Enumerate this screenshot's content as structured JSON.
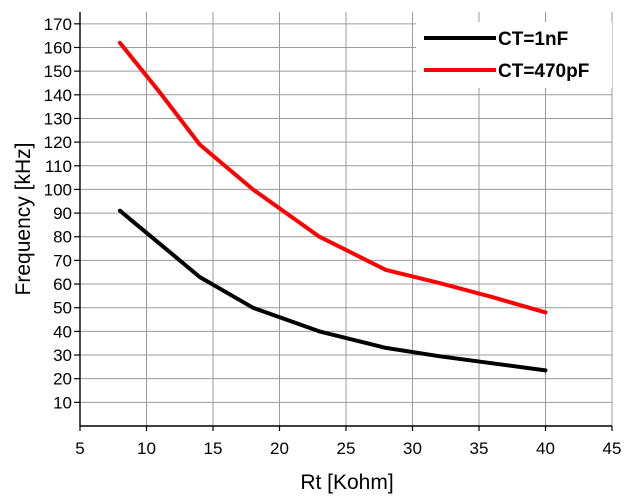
{
  "chart_data": {
    "type": "line",
    "title": "",
    "xlabel": "Rt [Kohm]",
    "ylabel": "Frequency [kHz]",
    "xlim": [
      5,
      45
    ],
    "ylim": [
      0,
      175
    ],
    "xticks": [
      "5",
      "10",
      "15",
      "20",
      "25",
      "30",
      "35",
      "40",
      "45"
    ],
    "yticks": [
      "10",
      "20",
      "30",
      "40",
      "50",
      "60",
      "70",
      "80",
      "90",
      "100",
      "110",
      "120",
      "130",
      "140",
      "150",
      "160",
      "170"
    ],
    "grid": true,
    "legend_position": "top-right",
    "series": [
      {
        "name": "CT=1nF",
        "color": "#000000",
        "x": [
          8,
          11,
          14,
          18,
          23,
          28,
          32,
          36,
          40
        ],
        "y": [
          91,
          77,
          63,
          50,
          40,
          33,
          29.5,
          26.5,
          23.5
        ]
      },
      {
        "name": "CT=470pF",
        "color": "#ff0000",
        "x": [
          8,
          11,
          14,
          18,
          23,
          28,
          32,
          36,
          40
        ],
        "y": [
          162,
          141,
          119,
          100,
          80,
          66,
          60.5,
          54.5,
          48
        ]
      }
    ]
  }
}
